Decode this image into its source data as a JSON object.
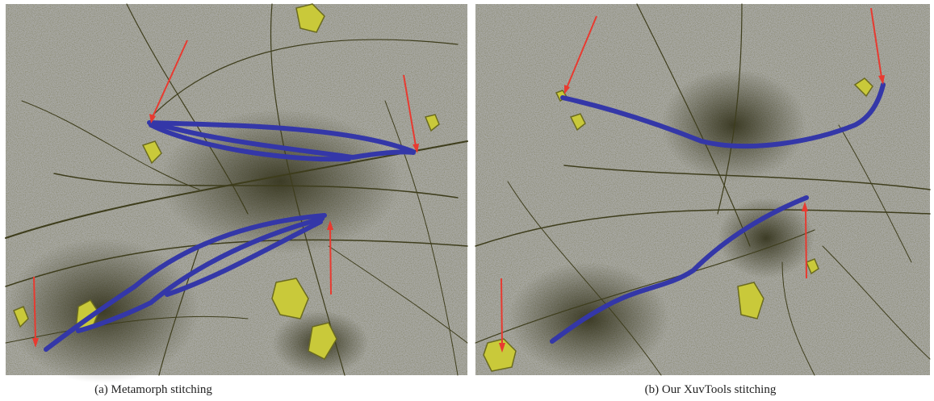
{
  "figure": {
    "panels": [
      {
        "caption": "(a) Metamorph stitching"
      },
      {
        "caption": "(b) Our XuvTools stitching"
      }
    ]
  }
}
